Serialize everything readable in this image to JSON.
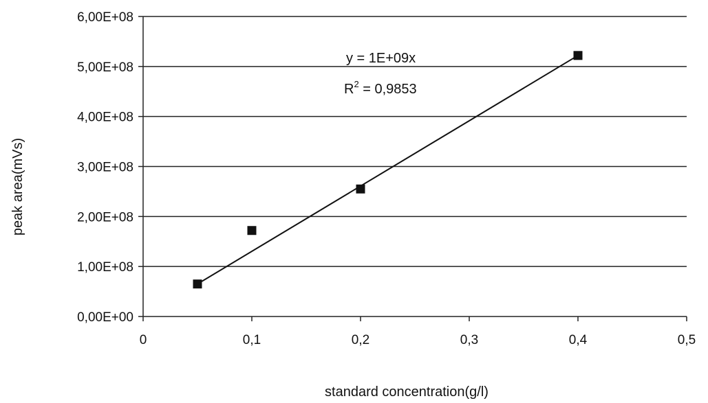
{
  "chart_data": {
    "type": "scatter",
    "xlabel": "standard concentration(g/l)",
    "ylabel": "peak area(mVs)",
    "xlim": [
      0,
      0.5
    ],
    "ylim": [
      0,
      600000000
    ],
    "x_ticks": [
      0,
      0.1,
      0.2,
      0.3,
      0.4,
      0.5
    ],
    "x_tick_labels": [
      "0",
      "0,1",
      "0,2",
      "0,3",
      "0,4",
      "0,5"
    ],
    "y_ticks": [
      0,
      100000000,
      200000000,
      300000000,
      400000000,
      500000000,
      600000000
    ],
    "y_tick_labels": [
      "0,00E+00",
      "1,00E+08",
      "2,00E+08",
      "3,00E+08",
      "4,00E+08",
      "5,00E+08",
      "6,00E+08"
    ],
    "grid": "horizontal",
    "legend": "none",
    "series": [
      {
        "marker": "square",
        "color": "#111111",
        "points": [
          {
            "x": 0.05,
            "y": 65000000
          },
          {
            "x": 0.1,
            "y": 172000000
          },
          {
            "x": 0.2,
            "y": 255000000
          },
          {
            "x": 0.4,
            "y": 522000000
          }
        ]
      }
    ],
    "trendline": {
      "type": "linear",
      "x_range": [
        0.05,
        0.4
      ],
      "y_range": [
        65000000,
        522000000
      ],
      "equation": "y = 1E+09x",
      "r2_prefix": "R",
      "r2_sup": "2",
      "r2_value": " = 0,9853"
    }
  }
}
